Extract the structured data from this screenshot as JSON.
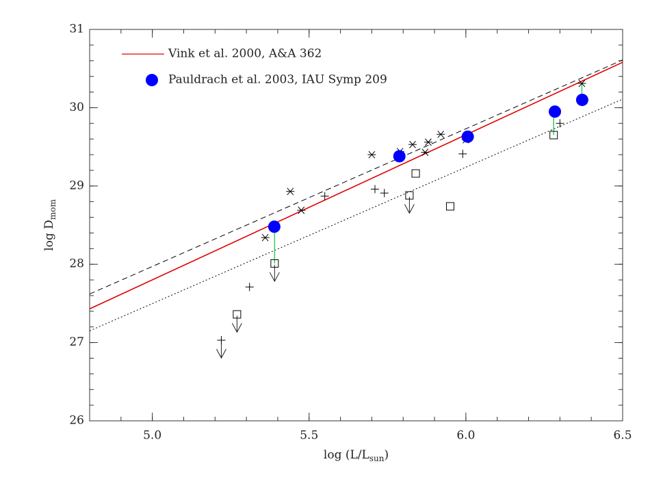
{
  "chart_data": {
    "type": "scatter",
    "x_label": {
      "text": "log (L/L",
      "sub": "sun",
      "tail": ")"
    },
    "y_label": {
      "text": "log D",
      "sub": "mom"
    },
    "xlim": [
      4.8,
      6.5
    ],
    "ylim": [
      26,
      31
    ],
    "xticks": [
      {
        "value": 5,
        "label": "5.0"
      },
      5.5,
      {
        "value": 6,
        "label": "6.0"
      },
      6.5
    ],
    "yticks": [
      26,
      27,
      28,
      29,
      30,
      31
    ],
    "xminor_step": 0.1,
    "yminor_step": 0.2,
    "legend": "upper left",
    "series": [
      {
        "name": "Vink et al. 2000, A&A 362",
        "type": "line",
        "style": "solid",
        "color": "#e00000",
        "x": [
          4.8,
          6.5
        ],
        "values": [
          27.43,
          30.58
        ]
      },
      {
        "type": "line",
        "style": "dashed",
        "color": "#000000",
        "x": [
          4.8,
          6.5
        ],
        "values": [
          27.62,
          30.61
        ]
      },
      {
        "type": "line",
        "style": "dotted",
        "color": "#000000",
        "x": [
          4.8,
          6.5
        ],
        "values": [
          27.15,
          30.11
        ]
      },
      {
        "type": "links",
        "color": "#33cc66",
        "x": [
          5.39,
          6.28,
          6.37
        ],
        "from": [
          28.48,
          29.95,
          30.1
        ],
        "to": [
          28.01,
          29.65,
          30.31
        ]
      },
      {
        "type": "scatter",
        "marker": "asterisk",
        "color": "#000000",
        "x": [
          5.36,
          5.44,
          5.475,
          5.7,
          5.79,
          5.83,
          5.87,
          5.88,
          5.92,
          6.0,
          6.37
        ],
        "values": [
          28.34,
          28.93,
          28.69,
          29.4,
          29.44,
          29.53,
          29.43,
          29.56,
          29.66,
          29.59,
          30.31
        ]
      },
      {
        "type": "scatter",
        "marker": "plus",
        "color": "#000000",
        "x": [
          5.22,
          5.31,
          5.55,
          5.71,
          5.74,
          5.99,
          6.3
        ],
        "values": [
          27.03,
          27.71,
          28.87,
          28.96,
          28.91,
          29.41,
          29.8
        ],
        "upper_limit": [
          true,
          false,
          false,
          false,
          false,
          false,
          false
        ]
      },
      {
        "type": "scatter",
        "marker": "square",
        "color": "#000000",
        "x": [
          5.27,
          5.39,
          5.84,
          5.82,
          5.95,
          6.28
        ],
        "values": [
          27.36,
          28.01,
          29.16,
          28.88,
          28.74,
          29.65
        ],
        "upper_limit": [
          true,
          true,
          false,
          true,
          false,
          false
        ]
      },
      {
        "name": "Pauldrach et al. 2003, IAU Symp 209",
        "type": "scatter",
        "marker": "circle",
        "color": "#0000ff",
        "x": [
          5.389,
          5.788,
          6.006,
          6.284,
          6.371
        ],
        "values": [
          28.48,
          29.38,
          29.63,
          29.95,
          30.1
        ]
      }
    ]
  }
}
